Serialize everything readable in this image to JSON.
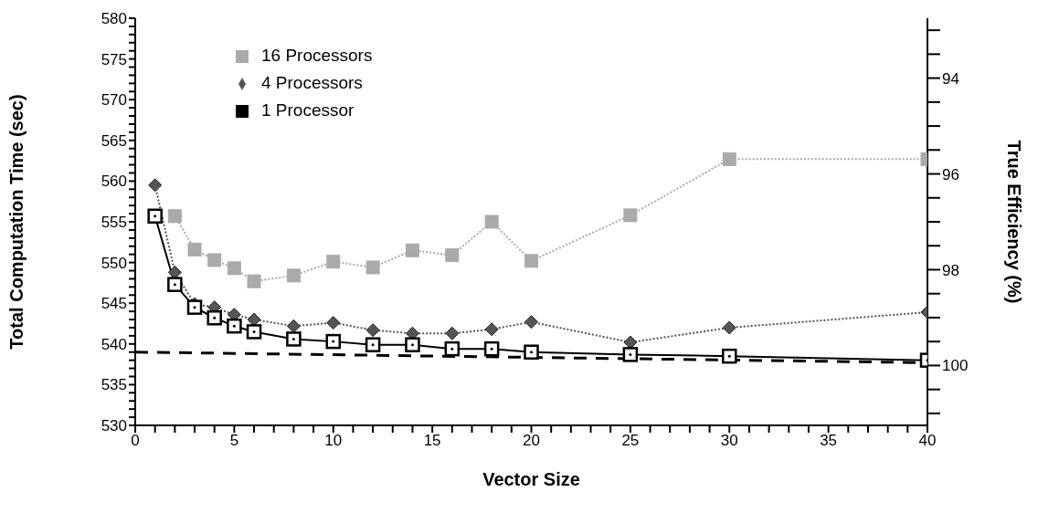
{
  "chart_data": {
    "type": "line",
    "xlabel": "Vector Size",
    "ylabel": "Total Computation Time (sec)",
    "y2label": "True Efficiency (%)",
    "xlim": [
      0,
      40
    ],
    "xticks": [
      0,
      {
        "value": 1,
        "label": null
      },
      {
        "value": 2,
        "label": null
      },
      {
        "value": 3,
        "label": null
      },
      {
        "value": 4,
        "label": null
      },
      5,
      {
        "value": 6,
        "label": null
      },
      {
        "value": 7,
        "label": null
      },
      {
        "value": 8,
        "label": null
      },
      {
        "value": 9,
        "label": null
      },
      10,
      {
        "value": 11,
        "label": null
      },
      {
        "value": 12,
        "label": null
      },
      {
        "value": 13,
        "label": null
      },
      {
        "value": 14,
        "label": null
      },
      15,
      {
        "value": 16,
        "label": null
      },
      {
        "value": 17,
        "label": null
      },
      {
        "value": 18,
        "label": null
      },
      {
        "value": 19,
        "label": null
      },
      20,
      {
        "value": 21,
        "label": null
      },
      {
        "value": 22,
        "label": null
      },
      {
        "value": 23,
        "label": null
      },
      {
        "value": 24,
        "label": null
      },
      25,
      {
        "value": 26,
        "label": null
      },
      {
        "value": 27,
        "label": null
      },
      {
        "value": 28,
        "label": null
      },
      {
        "value": 29,
        "label": null
      },
      30,
      {
        "value": 31,
        "label": null
      },
      {
        "value": 32,
        "label": null
      },
      {
        "value": 33,
        "label": null
      },
      {
        "value": 34,
        "label": null
      },
      35,
      {
        "value": 36,
        "label": null
      },
      {
        "value": 37,
        "label": null
      },
      {
        "value": 38,
        "label": null
      },
      {
        "value": 39,
        "label": null
      },
      40
    ],
    "ylim": [
      530,
      580
    ],
    "yticks": [
      530,
      {
        "value": 531,
        "label": null
      },
      {
        "value": 532,
        "label": null
      },
      {
        "value": 533,
        "label": null
      },
      {
        "value": 534,
        "label": null
      },
      535,
      {
        "value": 536,
        "label": null
      },
      {
        "value": 537,
        "label": null
      },
      {
        "value": 538,
        "label": null
      },
      {
        "value": 539,
        "label": null
      },
      540,
      {
        "value": 541,
        "label": null
      },
      {
        "value": 542,
        "label": null
      },
      {
        "value": 543,
        "label": null
      },
      {
        "value": 544,
        "label": null
      },
      545,
      {
        "value": 546,
        "label": null
      },
      {
        "value": 547,
        "label": null
      },
      {
        "value": 548,
        "label": null
      },
      {
        "value": 549,
        "label": null
      },
      550,
      {
        "value": 551,
        "label": null
      },
      {
        "value": 552,
        "label": null
      },
      {
        "value": 553,
        "label": null
      },
      {
        "value": 554,
        "label": null
      },
      555,
      {
        "value": 556,
        "label": null
      },
      {
        "value": 557,
        "label": null
      },
      {
        "value": 558,
        "label": null
      },
      {
        "value": 559,
        "label": null
      },
      560,
      {
        "value": 561,
        "label": null
      },
      {
        "value": 562,
        "label": null
      },
      {
        "value": 563,
        "label": null
      },
      {
        "value": 564,
        "label": null
      },
      565,
      {
        "value": 566,
        "label": null
      },
      {
        "value": 567,
        "label": null
      },
      {
        "value": 568,
        "label": null
      },
      {
        "value": 569,
        "label": null
      },
      570,
      {
        "value": 571,
        "label": null
      },
      {
        "value": 572,
        "label": null
      },
      {
        "value": 573,
        "label": null
      },
      {
        "value": 574,
        "label": null
      },
      575,
      {
        "value": 576,
        "label": null
      },
      {
        "value": 577,
        "label": null
      },
      {
        "value": 578,
        "label": null
      },
      {
        "value": 579,
        "label": null
      },
      580
    ],
    "y2lim": [
      101.25,
      92.75
    ],
    "y2ticks": [
      {
        "value": 93,
        "label": null
      },
      {
        "value": 93.5,
        "label": null
      },
      94,
      {
        "value": 94.5,
        "label": null
      },
      {
        "value": 95,
        "label": null
      },
      {
        "value": 95.5,
        "label": null
      },
      96,
      {
        "value": 96.5,
        "label": null
      },
      {
        "value": 97,
        "label": null
      },
      {
        "value": 97.5,
        "label": null
      },
      98,
      {
        "value": 98.5,
        "label": null
      },
      {
        "value": 99,
        "label": null
      },
      {
        "value": 99.5,
        "label": null
      },
      100,
      {
        "value": 100.5,
        "label": null
      },
      {
        "value": 101,
        "label": null
      }
    ],
    "grid": false,
    "legend": "top left",
    "series": [
      {
        "name": "16 Processors",
        "color": "#aaaaaa",
        "marker": "square",
        "line_style": "dotted",
        "x": [
          2,
          3,
          4,
          5,
          6,
          8,
          10,
          12,
          14,
          16,
          18,
          20,
          25,
          30,
          40
        ],
        "values": [
          555.7,
          551.6,
          550.3,
          549.3,
          547.7,
          548.4,
          550.1,
          549.4,
          551.5,
          550.9,
          555.0,
          550.2,
          555.8,
          562.7,
          562.7
        ]
      },
      {
        "name": "4 Processors",
        "color": "#555555",
        "marker": "diamond",
        "line_style": "dotted",
        "x": [
          1,
          2,
          3,
          4,
          5,
          6,
          8,
          10,
          12,
          14,
          16,
          18,
          20,
          25,
          30,
          40
        ],
        "values": [
          559.5,
          548.8,
          544.9,
          544.5,
          543.6,
          543.0,
          542.2,
          542.6,
          541.7,
          541.3,
          541.3,
          541.8,
          542.7,
          540.2,
          542.0,
          543.9
        ]
      },
      {
        "name": "1 Processor",
        "color": "#000000",
        "marker": "square",
        "line_style": "solid",
        "x": [
          1,
          2,
          3,
          4,
          5,
          6,
          8,
          10,
          12,
          14,
          16,
          18,
          20,
          25,
          30,
          40
        ],
        "values": [
          555.7,
          547.3,
          544.5,
          543.2,
          542.2,
          541.5,
          540.6,
          540.3,
          539.9,
          539.9,
          539.4,
          539.4,
          539.0,
          538.7,
          538.5,
          538.0
        ]
      },
      {
        "color": "#000000",
        "marker": "none",
        "line_style": "dashed",
        "x": [
          0,
          40
        ],
        "values": [
          539.0,
          537.7
        ]
      }
    ]
  }
}
